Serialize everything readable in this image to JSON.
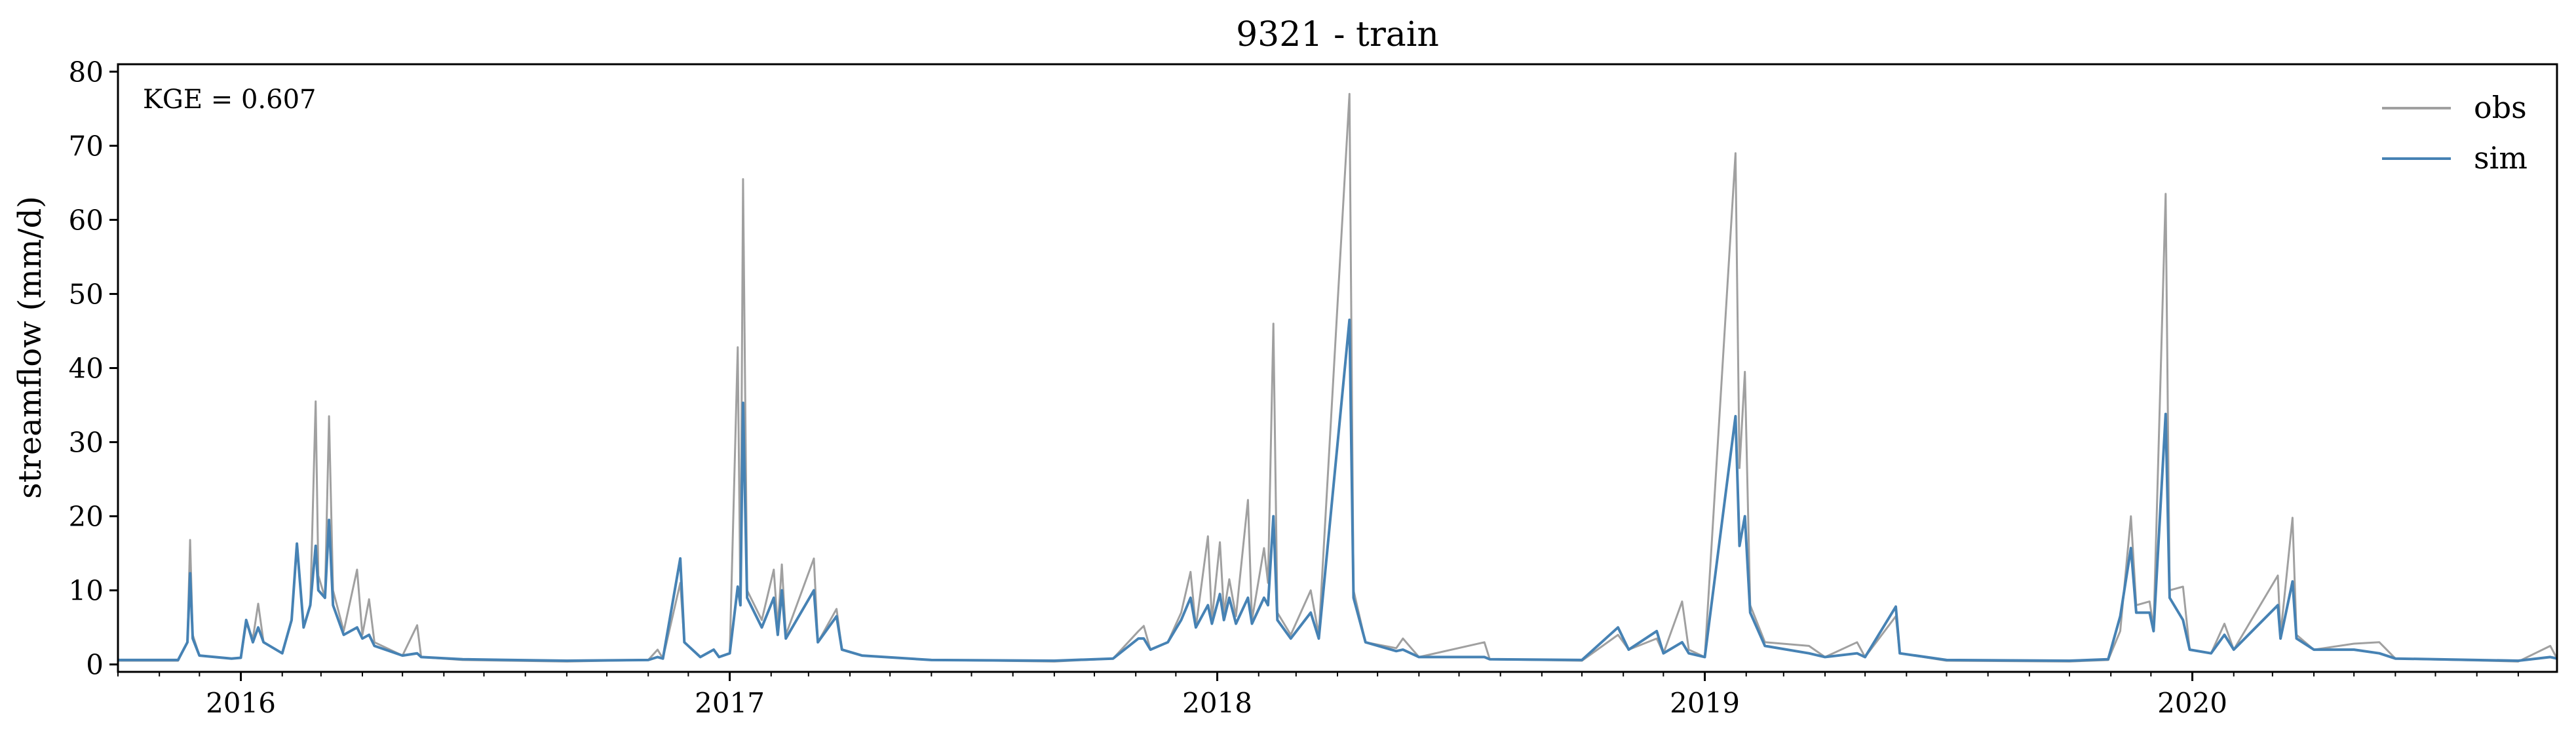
{
  "chart_data": {
    "type": "line",
    "title": "9321 - train",
    "xlabel": "",
    "ylabel": "streamflow (mm/d)",
    "annotation": "KGE = 0.607",
    "xlim": [
      "2015-10-01",
      "2020-09-30"
    ],
    "ylim": [
      -1,
      81
    ],
    "yticks": [
      0,
      10,
      20,
      30,
      40,
      50,
      60,
      70,
      80
    ],
    "xticks": [
      {
        "date": "2016-01-01",
        "label": "2016"
      },
      {
        "date": "2017-01-01",
        "label": "2017"
      },
      {
        "date": "2018-01-01",
        "label": "2018"
      },
      {
        "date": "2019-01-01",
        "label": "2019"
      },
      {
        "date": "2020-01-01",
        "label": "2020"
      }
    ],
    "grid": false,
    "legend": "top-right",
    "series": [
      {
        "name": "obs",
        "color": "#a0a0a0",
        "points": [
          [
            "2015-10-01",
            0.5
          ],
          [
            "2015-11-15",
            0.5
          ],
          [
            "2015-11-22",
            3.0
          ],
          [
            "2015-11-24",
            16.8
          ],
          [
            "2015-11-26",
            4.0
          ],
          [
            "2015-12-01",
            1.2
          ],
          [
            "2015-12-25",
            0.8
          ],
          [
            "2016-01-01",
            0.9
          ],
          [
            "2016-01-05",
            5.5
          ],
          [
            "2016-01-10",
            3.5
          ],
          [
            "2016-01-14",
            8.2
          ],
          [
            "2016-01-18",
            3.0
          ],
          [
            "2016-02-01",
            1.5
          ],
          [
            "2016-02-08",
            6.0
          ],
          [
            "2016-02-12",
            16.0
          ],
          [
            "2016-02-17",
            5.0
          ],
          [
            "2016-02-22",
            8.0
          ],
          [
            "2016-02-26",
            35.5
          ],
          [
            "2016-02-28",
            12.0
          ],
          [
            "2016-03-04",
            9.0
          ],
          [
            "2016-03-07",
            33.5
          ],
          [
            "2016-03-10",
            10.0
          ],
          [
            "2016-03-18",
            4.5
          ],
          [
            "2016-03-28",
            12.8
          ],
          [
            "2016-04-01",
            4.0
          ],
          [
            "2016-04-06",
            8.8
          ],
          [
            "2016-04-10",
            3.0
          ],
          [
            "2016-05-01",
            1.2
          ],
          [
            "2016-05-12",
            5.3
          ],
          [
            "2016-05-15",
            1.0
          ],
          [
            "2016-06-15",
            0.6
          ],
          [
            "2016-09-01",
            0.4
          ],
          [
            "2016-11-01",
            0.6
          ],
          [
            "2016-11-08",
            2.0
          ],
          [
            "2016-11-12",
            0.8
          ],
          [
            "2016-11-25",
            11.0
          ],
          [
            "2016-11-28",
            3.0
          ],
          [
            "2016-12-10",
            1.0
          ],
          [
            "2016-12-20",
            2.0
          ],
          [
            "2016-12-24",
            1.0
          ],
          [
            "2017-01-01",
            1.5
          ],
          [
            "2017-01-07",
            42.8
          ],
          [
            "2017-01-09",
            8.0
          ],
          [
            "2017-01-11",
            65.5
          ],
          [
            "2017-01-14",
            10.0
          ],
          [
            "2017-01-25",
            6.0
          ],
          [
            "2017-02-03",
            12.8
          ],
          [
            "2017-02-06",
            5.0
          ],
          [
            "2017-02-09",
            13.5
          ],
          [
            "2017-02-12",
            4.0
          ],
          [
            "2017-03-05",
            14.3
          ],
          [
            "2017-03-08",
            3.0
          ],
          [
            "2017-03-22",
            7.5
          ],
          [
            "2017-03-26",
            2.0
          ],
          [
            "2017-04-10",
            1.2
          ],
          [
            "2017-06-01",
            0.6
          ],
          [
            "2017-09-01",
            0.4
          ],
          [
            "2017-10-15",
            0.8
          ],
          [
            "2017-11-03",
            4.5
          ],
          [
            "2017-11-07",
            5.2
          ],
          [
            "2017-11-12",
            2.0
          ],
          [
            "2017-11-25",
            3.0
          ],
          [
            "2017-12-05",
            7.0
          ],
          [
            "2017-12-12",
            12.5
          ],
          [
            "2017-12-16",
            5.0
          ],
          [
            "2017-12-25",
            17.3
          ],
          [
            "2017-12-28",
            6.0
          ],
          [
            "2018-01-03",
            16.5
          ],
          [
            "2018-01-06",
            7.0
          ],
          [
            "2018-01-10",
            11.5
          ],
          [
            "2018-01-15",
            6.5
          ],
          [
            "2018-01-24",
            22.2
          ],
          [
            "2018-01-27",
            6.0
          ],
          [
            "2018-02-05",
            15.7
          ],
          [
            "2018-02-08",
            11.0
          ],
          [
            "2018-02-12",
            46.0
          ],
          [
            "2018-02-15",
            7.0
          ],
          [
            "2018-02-25",
            4.0
          ],
          [
            "2018-03-12",
            10.0
          ],
          [
            "2018-03-18",
            4.0
          ],
          [
            "2018-04-10",
            77.0
          ],
          [
            "2018-04-13",
            10.0
          ],
          [
            "2018-04-22",
            3.0
          ],
          [
            "2018-05-15",
            2.2
          ],
          [
            "2018-05-20",
            3.5
          ],
          [
            "2018-06-01",
            1.0
          ],
          [
            "2018-07-20",
            3.0
          ],
          [
            "2018-07-24",
            0.7
          ],
          [
            "2018-10-01",
            0.5
          ],
          [
            "2018-10-28",
            4.0
          ],
          [
            "2018-11-05",
            2.0
          ],
          [
            "2018-11-26",
            3.5
          ],
          [
            "2018-12-01",
            1.5
          ],
          [
            "2018-12-15",
            8.5
          ],
          [
            "2018-12-20",
            2.0
          ],
          [
            "2019-01-01",
            1.0
          ],
          [
            "2019-01-24",
            69.0
          ],
          [
            "2019-01-27",
            26.5
          ],
          [
            "2019-01-31",
            39.5
          ],
          [
            "2019-02-04",
            8.0
          ],
          [
            "2019-02-15",
            3.0
          ],
          [
            "2019-03-20",
            2.5
          ],
          [
            "2019-04-01",
            1.0
          ],
          [
            "2019-04-25",
            3.0
          ],
          [
            "2019-05-01",
            1.0
          ],
          [
            "2019-05-24",
            6.5
          ],
          [
            "2019-05-27",
            1.5
          ],
          [
            "2019-07-01",
            0.5
          ],
          [
            "2019-10-01",
            0.4
          ],
          [
            "2019-10-30",
            0.6
          ],
          [
            "2019-11-08",
            4.5
          ],
          [
            "2019-11-16",
            20.0
          ],
          [
            "2019-11-20",
            8.0
          ],
          [
            "2019-11-30",
            8.5
          ],
          [
            "2019-12-03",
            5.0
          ],
          [
            "2019-12-12",
            63.5
          ],
          [
            "2019-12-15",
            10.0
          ],
          [
            "2019-12-25",
            10.5
          ],
          [
            "2019-12-30",
            2.0
          ],
          [
            "2020-01-15",
            1.5
          ],
          [
            "2020-01-25",
            5.5
          ],
          [
            "2020-02-01",
            2.0
          ],
          [
            "2020-03-05",
            12.0
          ],
          [
            "2020-03-07",
            4.0
          ],
          [
            "2020-03-16",
            19.8
          ],
          [
            "2020-03-19",
            4.0
          ],
          [
            "2020-04-01",
            2.0
          ],
          [
            "2020-05-01",
            2.8
          ],
          [
            "2020-05-20",
            3.0
          ],
          [
            "2020-06-01",
            0.8
          ],
          [
            "2020-09-01",
            0.4
          ],
          [
            "2020-09-25",
            2.5
          ],
          [
            "2020-09-30",
            0.8
          ]
        ]
      },
      {
        "name": "sim",
        "color": "#4682b4",
        "points": [
          [
            "2015-10-01",
            0.6
          ],
          [
            "2015-11-15",
            0.6
          ],
          [
            "2015-11-22",
            3.0
          ],
          [
            "2015-11-24",
            12.3
          ],
          [
            "2015-11-26",
            3.5
          ],
          [
            "2015-12-01",
            1.2
          ],
          [
            "2015-12-25",
            0.8
          ],
          [
            "2016-01-01",
            0.9
          ],
          [
            "2016-01-05",
            6.0
          ],
          [
            "2016-01-10",
            3.0
          ],
          [
            "2016-01-14",
            5.0
          ],
          [
            "2016-01-18",
            3.0
          ],
          [
            "2016-02-01",
            1.5
          ],
          [
            "2016-02-08",
            6.0
          ],
          [
            "2016-02-12",
            16.3
          ],
          [
            "2016-02-17",
            5.0
          ],
          [
            "2016-02-22",
            8.0
          ],
          [
            "2016-02-26",
            16.0
          ],
          [
            "2016-02-28",
            10.0
          ],
          [
            "2016-03-04",
            9.0
          ],
          [
            "2016-03-07",
            19.5
          ],
          [
            "2016-03-10",
            8.0
          ],
          [
            "2016-03-18",
            4.0
          ],
          [
            "2016-03-28",
            5.0
          ],
          [
            "2016-04-01",
            3.5
          ],
          [
            "2016-04-06",
            4.0
          ],
          [
            "2016-04-10",
            2.5
          ],
          [
            "2016-05-01",
            1.2
          ],
          [
            "2016-05-12",
            1.5
          ],
          [
            "2016-05-15",
            1.0
          ],
          [
            "2016-06-15",
            0.7
          ],
          [
            "2016-09-01",
            0.5
          ],
          [
            "2016-11-01",
            0.6
          ],
          [
            "2016-11-08",
            1.0
          ],
          [
            "2016-11-12",
            0.8
          ],
          [
            "2016-11-25",
            14.3
          ],
          [
            "2016-11-28",
            3.0
          ],
          [
            "2016-12-10",
            1.0
          ],
          [
            "2016-12-20",
            2.0
          ],
          [
            "2016-12-24",
            1.0
          ],
          [
            "2017-01-01",
            1.5
          ],
          [
            "2017-01-07",
            10.5
          ],
          [
            "2017-01-09",
            8.0
          ],
          [
            "2017-01-11",
            35.3
          ],
          [
            "2017-01-14",
            9.0
          ],
          [
            "2017-01-25",
            5.0
          ],
          [
            "2017-02-03",
            9.0
          ],
          [
            "2017-02-06",
            4.0
          ],
          [
            "2017-02-09",
            10.0
          ],
          [
            "2017-02-12",
            3.5
          ],
          [
            "2017-03-05",
            10.0
          ],
          [
            "2017-03-08",
            3.0
          ],
          [
            "2017-03-22",
            6.5
          ],
          [
            "2017-03-26",
            2.0
          ],
          [
            "2017-04-10",
            1.2
          ],
          [
            "2017-06-01",
            0.6
          ],
          [
            "2017-09-01",
            0.5
          ],
          [
            "2017-10-15",
            0.8
          ],
          [
            "2017-11-03",
            3.5
          ],
          [
            "2017-11-07",
            3.5
          ],
          [
            "2017-11-12",
            2.0
          ],
          [
            "2017-11-25",
            3.0
          ],
          [
            "2017-12-05",
            6.0
          ],
          [
            "2017-12-12",
            9.0
          ],
          [
            "2017-12-16",
            5.0
          ],
          [
            "2017-12-25",
            8.0
          ],
          [
            "2017-12-28",
            5.5
          ],
          [
            "2018-01-03",
            9.5
          ],
          [
            "2018-01-06",
            6.0
          ],
          [
            "2018-01-10",
            9.0
          ],
          [
            "2018-01-15",
            5.5
          ],
          [
            "2018-01-24",
            9.0
          ],
          [
            "2018-01-27",
            5.5
          ],
          [
            "2018-02-05",
            9.0
          ],
          [
            "2018-02-08",
            8.0
          ],
          [
            "2018-02-12",
            20.0
          ],
          [
            "2018-02-15",
            6.0
          ],
          [
            "2018-02-25",
            3.5
          ],
          [
            "2018-03-12",
            7.0
          ],
          [
            "2018-03-18",
            3.5
          ],
          [
            "2018-04-10",
            46.5
          ],
          [
            "2018-04-13",
            9.0
          ],
          [
            "2018-04-22",
            3.0
          ],
          [
            "2018-05-15",
            1.8
          ],
          [
            "2018-05-20",
            2.0
          ],
          [
            "2018-06-01",
            1.0
          ],
          [
            "2018-07-20",
            1.0
          ],
          [
            "2018-07-24",
            0.7
          ],
          [
            "2018-10-01",
            0.6
          ],
          [
            "2018-10-28",
            5.0
          ],
          [
            "2018-11-05",
            2.0
          ],
          [
            "2018-11-26",
            4.5
          ],
          [
            "2018-12-01",
            1.5
          ],
          [
            "2018-12-15",
            3.0
          ],
          [
            "2018-12-20",
            1.5
          ],
          [
            "2019-01-01",
            1.0
          ],
          [
            "2019-01-24",
            33.5
          ],
          [
            "2019-01-27",
            16.0
          ],
          [
            "2019-01-31",
            20.0
          ],
          [
            "2019-02-04",
            7.0
          ],
          [
            "2019-02-15",
            2.5
          ],
          [
            "2019-03-20",
            1.5
          ],
          [
            "2019-04-01",
            1.0
          ],
          [
            "2019-04-25",
            1.5
          ],
          [
            "2019-05-01",
            1.0
          ],
          [
            "2019-05-24",
            7.8
          ],
          [
            "2019-05-27",
            1.5
          ],
          [
            "2019-07-01",
            0.6
          ],
          [
            "2019-10-01",
            0.5
          ],
          [
            "2019-10-30",
            0.7
          ],
          [
            "2019-11-08",
            6.5
          ],
          [
            "2019-11-16",
            15.7
          ],
          [
            "2019-11-20",
            7.0
          ],
          [
            "2019-11-30",
            7.0
          ],
          [
            "2019-12-03",
            4.5
          ],
          [
            "2019-12-12",
            33.8
          ],
          [
            "2019-12-15",
            9.0
          ],
          [
            "2019-12-25",
            6.0
          ],
          [
            "2019-12-30",
            2.0
          ],
          [
            "2020-01-15",
            1.5
          ],
          [
            "2020-01-25",
            4.0
          ],
          [
            "2020-02-01",
            2.0
          ],
          [
            "2020-03-05",
            8.0
          ],
          [
            "2020-03-07",
            3.5
          ],
          [
            "2020-03-16",
            11.2
          ],
          [
            "2020-03-19",
            3.5
          ],
          [
            "2020-04-01",
            2.0
          ],
          [
            "2020-05-01",
            2.0
          ],
          [
            "2020-05-20",
            1.5
          ],
          [
            "2020-06-01",
            0.8
          ],
          [
            "2020-09-01",
            0.5
          ],
          [
            "2020-09-25",
            1.0
          ],
          [
            "2020-09-30",
            0.8
          ]
        ]
      }
    ]
  }
}
